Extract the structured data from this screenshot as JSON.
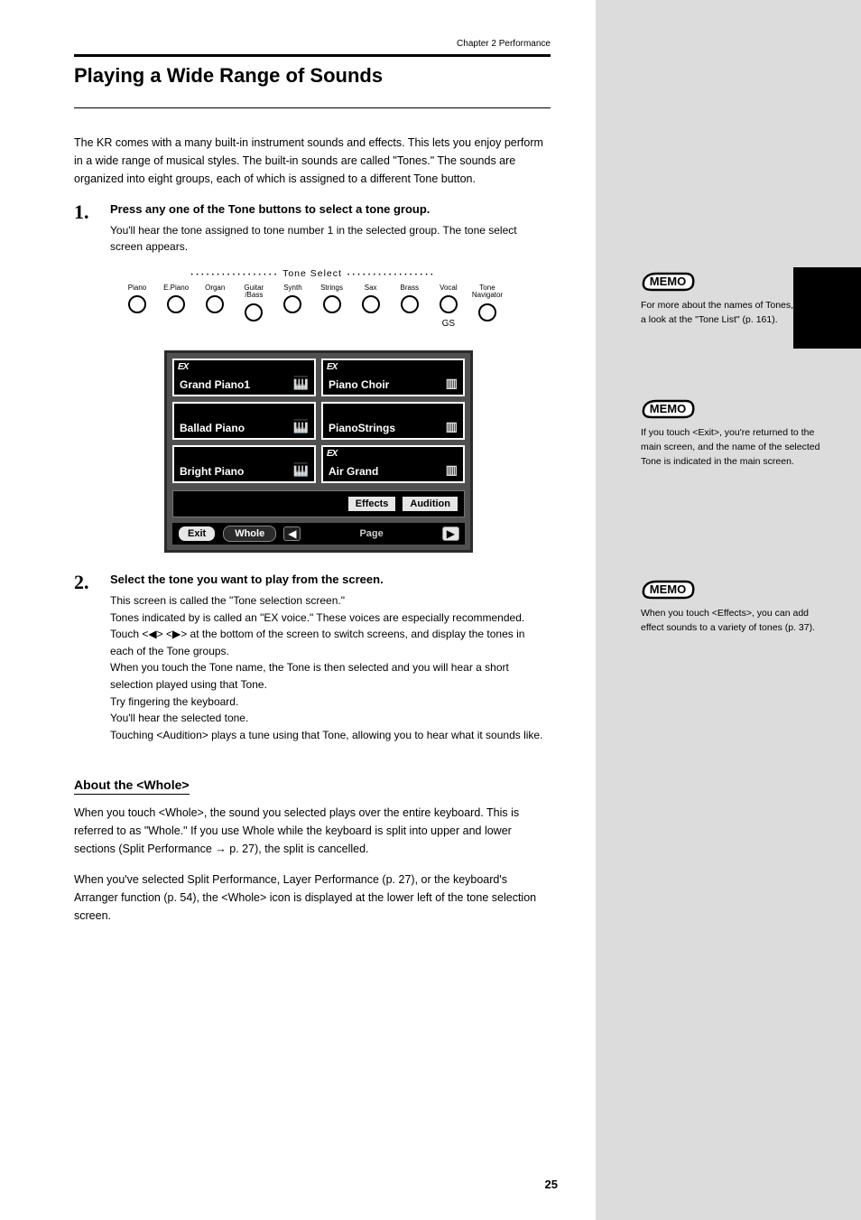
{
  "chapter_header": "Chapter 2  Performance",
  "section_title": "Playing a Wide Range of Sounds",
  "intro_para": "The KR comes with a many built-in instrument sounds and effects. This lets you enjoy perform in a wide range of musical styles. The built-in sounds are called \"Tones.\" The sounds are organized into eight groups, each of which is assigned to a different Tone button.",
  "step1": {
    "primary": "Press any one of the Tone buttons to select a tone group.",
    "secondary": "You'll hear the tone assigned to tone number 1 in the selected group. The tone select screen appears."
  },
  "tone_select_label": "Tone Select",
  "tone_buttons": [
    {
      "label": "Piano"
    },
    {
      "label": "E.Piano"
    },
    {
      "label": "Organ"
    },
    {
      "label": "Guitar\n/Bass"
    },
    {
      "label": "Synth"
    },
    {
      "label": "Strings"
    },
    {
      "label": "Sax"
    },
    {
      "label": "Brass"
    },
    {
      "label": "Vocal",
      "sub": "GS"
    },
    {
      "label": "Tone\nNavigator"
    }
  ],
  "lcd": {
    "tones": [
      {
        "name": "Grand Piano1",
        "ex": true,
        "icon": "piano"
      },
      {
        "name": "Piano Choir",
        "ex": true,
        "icon": "stack"
      },
      {
        "name": "Ballad Piano",
        "ex": false,
        "icon": "piano"
      },
      {
        "name": "PianoStrings",
        "ex": false,
        "icon": "stack"
      },
      {
        "name": "Bright Piano",
        "ex": false,
        "icon": "piano"
      },
      {
        "name": "Air Grand",
        "ex": true,
        "icon": "stack"
      }
    ],
    "effects": "Effects",
    "audition": "Audition",
    "exit": "Exit",
    "whole": "Whole",
    "page": "Page"
  },
  "step2": {
    "primary": "Select the tone you want to play from the screen.",
    "secondary_1": "This screen is called the \"Tone selection screen.\"",
    "secondary_2": "Tones indicated by            is called an \"EX voice.\" These voices are especially recommended.",
    "secondary_3": "Touch <   > <   > at the bottom of the screen to switch screens, and display the tones in each of the Tone groups.",
    "secondary_4": "When you touch the Tone name, the Tone is then selected and you will hear a short selection played using that Tone.",
    "secondary_5": "Try fingering the keyboard.",
    "secondary_6": "You'll hear the selected tone.",
    "secondary_7": "Touching <Audition> plays a tune using that Tone, allowing you to hear what it sounds like."
  },
  "about_title": "About the <Whole>",
  "about_p1": "When you touch <Whole>, the sound you selected plays over the entire keyboard. This is referred to as \"Whole.\" If you use Whole while the keyboard is split into upper and lower sections (Split Performance → p. 27), the split is cancelled.",
  "about_p2": "When you've selected Split Performance, Layer Performance (p. 27), or the keyboard's Arranger function (p. 54), the <Whole> icon is displayed at the lower left of the tone selection screen.",
  "memo1": "For more about the names of Tones, take a look at the \"Tone List\" (p. 161).",
  "memo2": "If you touch <Exit>, you're returned to the main screen, and the name of the selected Tone is indicated in the main screen.",
  "memo3": "When you touch <Effects>, you can add effect sounds to a variety of tones (p. 37).",
  "page_number": "25"
}
